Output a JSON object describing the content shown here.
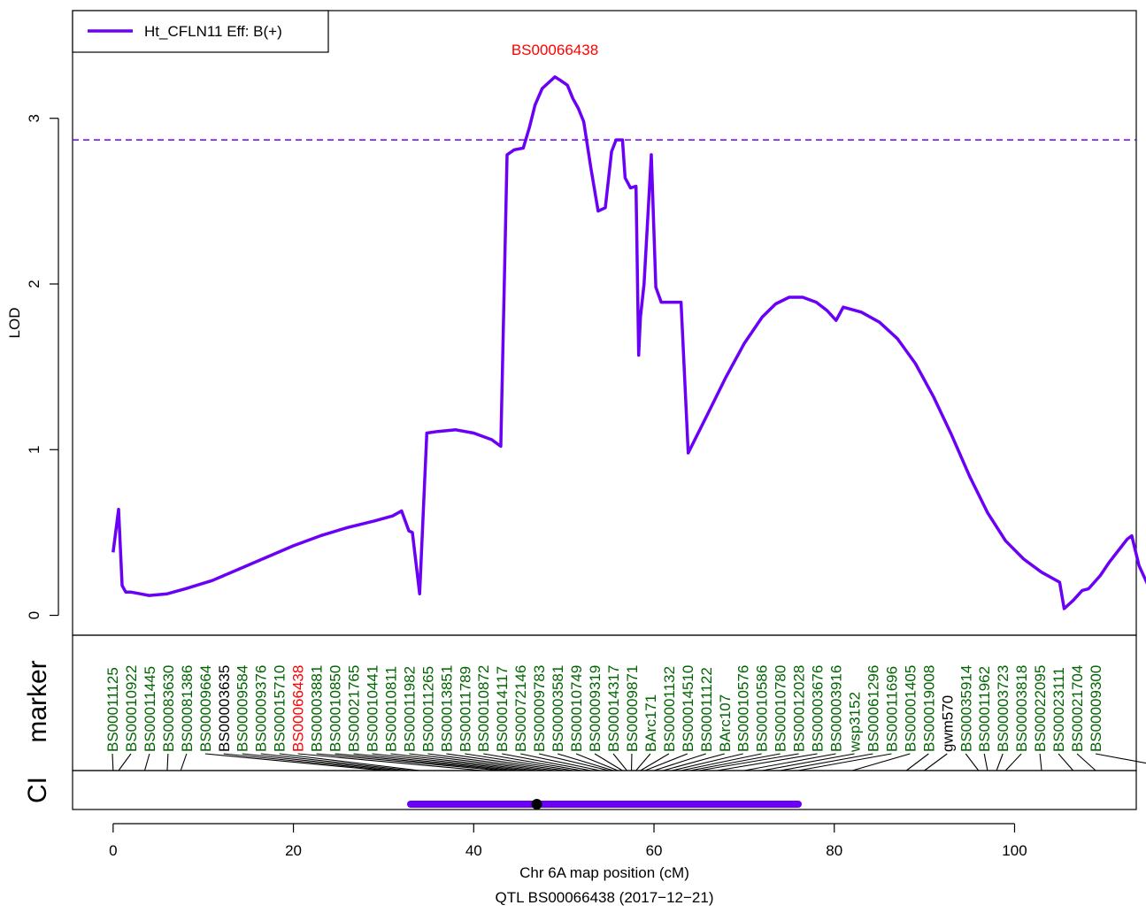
{
  "chart_data": {
    "type": "line",
    "title": "",
    "xlabel": "Chr 6A map position (cM)",
    "subtitle": "QTL BS00066438 (2017−12−21)",
    "ylabel": "LOD",
    "xlim": [
      -4.5,
      113.5
    ],
    "ylim": [
      -0.12,
      3.65
    ],
    "x_ticks": [
      0,
      20,
      40,
      60,
      80,
      100
    ],
    "y_ticks": [
      0,
      1,
      2,
      3
    ],
    "grid": false,
    "legend": {
      "position": "top-left",
      "label": "Ht_CFLN11 Eff: B(+)"
    },
    "peak_marker_label": "BS00066438",
    "threshold": 2.87,
    "series": [
      {
        "name": "Ht_CFLN11 Eff: B(+)",
        "color": "#6a00f5",
        "points": [
          [
            0.0,
            0.38
          ],
          [
            0.6,
            0.64
          ],
          [
            1.0,
            0.18
          ],
          [
            1.4,
            0.14
          ],
          [
            2.0,
            0.14
          ],
          [
            3.0,
            0.13
          ],
          [
            4.0,
            0.12
          ],
          [
            6.0,
            0.13
          ],
          [
            8.0,
            0.16
          ],
          [
            11.0,
            0.21
          ],
          [
            14.0,
            0.28
          ],
          [
            17.0,
            0.35
          ],
          [
            20.0,
            0.42
          ],
          [
            23.0,
            0.48
          ],
          [
            26.0,
            0.53
          ],
          [
            29.0,
            0.57
          ],
          [
            31.0,
            0.6
          ],
          [
            32.0,
            0.63
          ],
          [
            32.8,
            0.51
          ],
          [
            33.2,
            0.5
          ],
          [
            34.0,
            0.13
          ],
          [
            34.8,
            1.1
          ],
          [
            36.0,
            1.11
          ],
          [
            38.0,
            1.12
          ],
          [
            40.0,
            1.1
          ],
          [
            42.0,
            1.06
          ],
          [
            43.0,
            1.02
          ],
          [
            43.7,
            2.78
          ],
          [
            44.5,
            2.81
          ],
          [
            45.5,
            2.82
          ],
          [
            46.2,
            2.95
          ],
          [
            46.8,
            3.08
          ],
          [
            47.6,
            3.18
          ],
          [
            48.4,
            3.22
          ],
          [
            49.0,
            3.25
          ],
          [
            49.6,
            3.23
          ],
          [
            50.4,
            3.2
          ],
          [
            51.0,
            3.12
          ],
          [
            51.6,
            3.06
          ],
          [
            52.2,
            2.98
          ],
          [
            53.0,
            2.7
          ],
          [
            53.8,
            2.44
          ],
          [
            54.6,
            2.46
          ],
          [
            55.3,
            2.8
          ],
          [
            55.8,
            2.87
          ],
          [
            56.5,
            2.87
          ],
          [
            56.8,
            2.64
          ],
          [
            57.4,
            2.58
          ],
          [
            58.0,
            2.59
          ],
          [
            58.3,
            1.57
          ],
          [
            58.5,
            1.8
          ],
          [
            58.9,
            2.0
          ],
          [
            59.7,
            2.78
          ],
          [
            60.2,
            1.98
          ],
          [
            60.8,
            1.89
          ],
          [
            62.0,
            1.89
          ],
          [
            63.0,
            1.89
          ],
          [
            63.8,
            0.98
          ],
          [
            66.0,
            1.22
          ],
          [
            68.0,
            1.44
          ],
          [
            70.0,
            1.64
          ],
          [
            72.0,
            1.8
          ],
          [
            73.5,
            1.88
          ],
          [
            75.0,
            1.92
          ],
          [
            76.5,
            1.92
          ],
          [
            78.0,
            1.89
          ],
          [
            79.2,
            1.84
          ],
          [
            80.2,
            1.78
          ],
          [
            81.0,
            1.86
          ],
          [
            83.0,
            1.83
          ],
          [
            85.0,
            1.77
          ],
          [
            87.0,
            1.67
          ],
          [
            89.0,
            1.52
          ],
          [
            91.0,
            1.32
          ],
          [
            93.0,
            1.09
          ],
          [
            95.0,
            0.84
          ],
          [
            97.0,
            0.62
          ],
          [
            99.0,
            0.45
          ],
          [
            101.0,
            0.34
          ],
          [
            103.0,
            0.26
          ],
          [
            105.0,
            0.2
          ],
          [
            105.5,
            0.04
          ],
          [
            106.5,
            0.09
          ],
          [
            107.5,
            0.15
          ],
          [
            108.2,
            0.16
          ],
          [
            109.5,
            0.24
          ],
          [
            110.5,
            0.32
          ],
          [
            112.5,
            0.46
          ],
          [
            113.0,
            0.48
          ],
          [
            113.8,
            0.3
          ],
          [
            114.9,
            0.17
          ],
          [
            116.0,
            0.2
          ],
          [
            117.2,
            0.37
          ],
          [
            118.1,
            0.27
          ],
          [
            119.0,
            0.38
          ]
        ]
      }
    ],
    "ci": {
      "low": 33.0,
      "high": 76.0,
      "peak": 47.0,
      "color": "#6a00f5"
    },
    "marker_panel_label": "marker",
    "ci_panel_label": "CI",
    "markers": [
      {
        "name": "BS00011125",
        "pos": 0.0,
        "color": "#006400"
      },
      {
        "name": "BS00010922",
        "pos": 0.6,
        "color": "#006400"
      },
      {
        "name": "BS00011445",
        "pos": 3.5,
        "color": "#006400"
      },
      {
        "name": "BS00083630",
        "pos": 6.0,
        "color": "#006400"
      },
      {
        "name": "BS00081386",
        "pos": 7.5,
        "color": "#006400"
      },
      {
        "name": "BS00009664",
        "pos": 30.0,
        "color": "#006400"
      },
      {
        "name": "BS00003635",
        "pos": 31.0,
        "color": "#000000"
      },
      {
        "name": "BS00009584",
        "pos": 32.0,
        "color": "#006400"
      },
      {
        "name": "BS00009376",
        "pos": 33.0,
        "color": "#006400"
      },
      {
        "name": "BS00015710",
        "pos": 34.0,
        "color": "#006400"
      },
      {
        "name": "BS00066438",
        "pos": 41.0,
        "color": "#ff0000"
      },
      {
        "name": "BS00003881",
        "pos": 43.0,
        "color": "#006400"
      },
      {
        "name": "BS00010850",
        "pos": 44.0,
        "color": "#006400"
      },
      {
        "name": "BS00021765",
        "pos": 45.0,
        "color": "#006400"
      },
      {
        "name": "BS00010441",
        "pos": 46.0,
        "color": "#006400"
      },
      {
        "name": "BS00010811",
        "pos": 47.0,
        "color": "#006400"
      },
      {
        "name": "BS00011982",
        "pos": 48.0,
        "color": "#006400"
      },
      {
        "name": "BS00011265",
        "pos": 49.0,
        "color": "#006400"
      },
      {
        "name": "BS00013851",
        "pos": 50.0,
        "color": "#006400"
      },
      {
        "name": "BS00011789",
        "pos": 51.0,
        "color": "#006400"
      },
      {
        "name": "BS00010872",
        "pos": 52.0,
        "color": "#006400"
      },
      {
        "name": "BS00014117",
        "pos": 53.0,
        "color": "#006400"
      },
      {
        "name": "BS00072146",
        "pos": 54.0,
        "color": "#006400"
      },
      {
        "name": "BS00009783",
        "pos": 55.0,
        "color": "#006400"
      },
      {
        "name": "BS00003581",
        "pos": 55.5,
        "color": "#006400"
      },
      {
        "name": "BS00010749",
        "pos": 56.0,
        "color": "#006400"
      },
      {
        "name": "BS00009319",
        "pos": 56.5,
        "color": "#006400"
      },
      {
        "name": "BS00014317",
        "pos": 57.0,
        "color": "#006400"
      },
      {
        "name": "BS00009871",
        "pos": 57.5,
        "color": "#006400"
      },
      {
        "name": "BArc171",
        "pos": 58.0,
        "color": "#006400"
      },
      {
        "name": "BS00001132",
        "pos": 58.5,
        "color": "#006400"
      },
      {
        "name": "BS00014510",
        "pos": 59.0,
        "color": "#006400"
      },
      {
        "name": "BS00011122",
        "pos": 60.0,
        "color": "#006400"
      },
      {
        "name": "BArc107",
        "pos": 61.0,
        "color": "#006400"
      },
      {
        "name": "BS00010576",
        "pos": 62.0,
        "color": "#006400"
      },
      {
        "name": "BS00010586",
        "pos": 63.0,
        "color": "#006400"
      },
      {
        "name": "BS00010780",
        "pos": 64.0,
        "color": "#006400"
      },
      {
        "name": "BS00012028",
        "pos": 65.0,
        "color": "#006400"
      },
      {
        "name": "BS00003676",
        "pos": 67.0,
        "color": "#006400"
      },
      {
        "name": "BS00003916",
        "pos": 70.0,
        "color": "#006400"
      },
      {
        "name": "wsp3152",
        "pos": 72.0,
        "color": "#006400"
      },
      {
        "name": "BS00061296",
        "pos": 74.0,
        "color": "#006400"
      },
      {
        "name": "BS00011696",
        "pos": 76.0,
        "color": "#006400"
      },
      {
        "name": "BS00001405",
        "pos": 82.0,
        "color": "#006400"
      },
      {
        "name": "BS00019008",
        "pos": 88.0,
        "color": "#006400"
      },
      {
        "name": "gwm570",
        "pos": 90.0,
        "color": "#000000"
      },
      {
        "name": "BS00035914",
        "pos": 96.0,
        "color": "#006400"
      },
      {
        "name": "BS00011962",
        "pos": 97.0,
        "color": "#006400"
      },
      {
        "name": "BS00003723",
        "pos": 98.0,
        "color": "#006400"
      },
      {
        "name": "BS00003818",
        "pos": 99.0,
        "color": "#006400"
      },
      {
        "name": "BS00022095",
        "pos": 103.0,
        "color": "#006400"
      },
      {
        "name": "BS00023111",
        "pos": 106.5,
        "color": "#006400"
      },
      {
        "name": "BS00021704",
        "pos": 109.0,
        "color": "#006400"
      },
      {
        "name": "BS00009300",
        "pos": 119.0,
        "color": "#006400"
      }
    ]
  }
}
